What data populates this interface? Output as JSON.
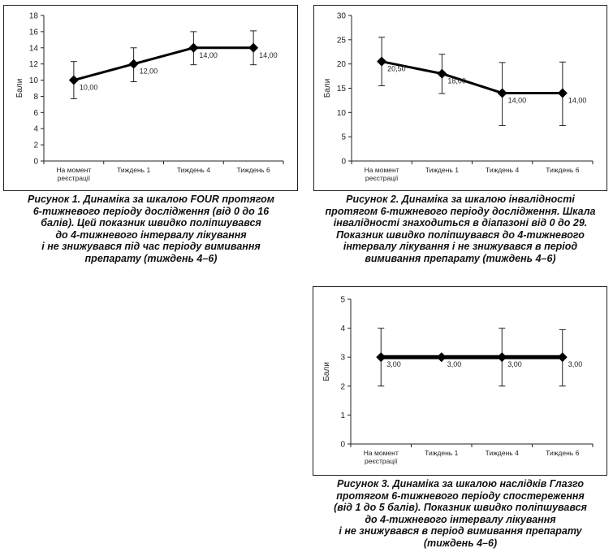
{
  "chart_data": [
    {
      "type": "line",
      "categories": [
        [
          "На момент",
          "реєстрації"
        ],
        [
          "Тиждень 1"
        ],
        [
          "Тиждень 4"
        ],
        [
          "Тиждень 6"
        ]
      ],
      "series": [
        {
          "values": [
            10,
            12,
            14,
            14
          ]
        }
      ],
      "data_labels": [
        "10,00",
        "12,00",
        "14,00",
        "14,00"
      ],
      "error_low": [
        7.7,
        9.8,
        11.9,
        11.9
      ],
      "error_high": [
        12.3,
        14.0,
        16.0,
        16.1
      ],
      "ylabel": "Бали",
      "xlabel": "",
      "yticks": [
        "0",
        "2",
        "4",
        "6",
        "8",
        "10",
        "12",
        "14",
        "16",
        "18"
      ],
      "ylim": [
        0,
        18
      ],
      "grid": false,
      "legend": "none",
      "caption": [
        "Рисунок 1. Динаміка за шкалою FOUR протягом",
        "6-тижневого періоду дослідження (від 0 до 16",
        "балів). Цей показник швидко поліпшувався",
        "до 4-тижневого інтервалу лікування",
        "і не знижувався під час періоду вимивання",
        "препарату (тиждень 4–6)"
      ]
    },
    {
      "type": "line",
      "categories": [
        [
          "На момент",
          "реєстрації"
        ],
        [
          "Тиждень 1"
        ],
        [
          "Тиждень 4"
        ],
        [
          "Тиждень 6"
        ]
      ],
      "series": [
        {
          "values": [
            20.5,
            18,
            14,
            14
          ]
        }
      ],
      "data_labels": [
        "20,50",
        "18,00",
        "14,00",
        "14,00"
      ],
      "error_low": [
        15.5,
        13.9,
        7.3,
        7.3
      ],
      "error_high": [
        25.5,
        22.0,
        20.3,
        20.4
      ],
      "ylabel": "Бали",
      "xlabel": "",
      "yticks": [
        "0",
        "5",
        "10",
        "15",
        "20",
        "25",
        "30"
      ],
      "ylim": [
        0,
        30
      ],
      "grid": false,
      "legend": "none",
      "caption": [
        "Рисунок 2. Динаміка за шкалою інвалідності",
        "протягом 6-тижневого періоду дослідження. Шкала",
        "інвалідності знаходиться в діапазоні від 0 до 29.",
        "Показник швидко поліпшувався до 4-тижневого",
        "інтервалу лікування і не знижувався в період",
        "вимивання препарату (тиждень 4–6)"
      ]
    },
    {
      "type": "line",
      "categories": [
        [
          "На момент",
          "реєстрації"
        ],
        [
          "Тиждень 1"
        ],
        [
          "Тиждень 4"
        ],
        [
          "Тиждень 6"
        ]
      ],
      "series": [
        {
          "values": [
            3,
            3,
            3,
            3
          ]
        }
      ],
      "data_labels": [
        "3,00",
        "3,00",
        "3,00",
        "3,00"
      ],
      "error_low": [
        2.0,
        3.0,
        2.0,
        2.0
      ],
      "error_high": [
        4.0,
        3.0,
        4.0,
        3.95
      ],
      "ylabel": "Бали",
      "xlabel": "",
      "yticks": [
        "0",
        "1",
        "2",
        "3",
        "4",
        "5"
      ],
      "ylim": [
        0,
        5
      ],
      "grid": false,
      "legend": "none",
      "caption": [
        "Рисунок 3. Динаміка за шкалою наслідків Глазго",
        "протягом 6-тижневого періоду спостереження",
        "(від 1 до 5 балів). Показник швидко поліпшувався",
        "до 4-тижневого інтервалу лікування",
        "і не знижувався в період вимивання препарату",
        "(тиждень 4–6)"
      ]
    }
  ]
}
